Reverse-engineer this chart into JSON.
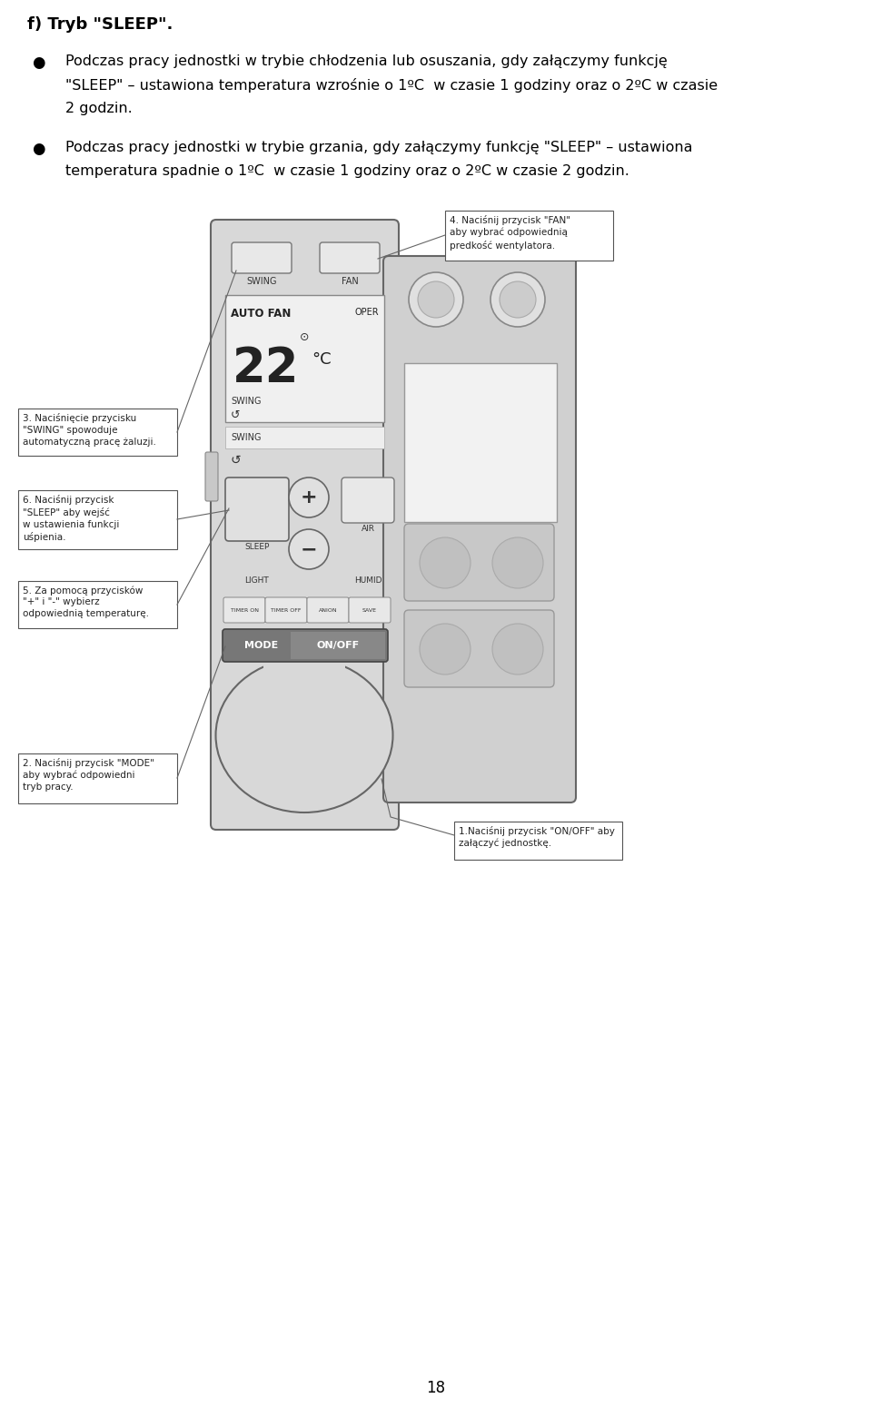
{
  "title": "f) Tryb \"SLEEP\".",
  "bullet1_line1": "Podczas pracy jednostki w trybie chłodzenia lub osuszania, gdy załączymy funkcję",
  "bullet1_line2": "\"SLEEP\" – ustawiona temperatura wzrośnie o 1ºC  w czasie 1 godziny oraz o 2ºC w czasie",
  "bullet1_line3": "2 godzin.",
  "bullet2_line1": "Podczas pracy jednostki w trybie grzania, gdy załączymy funkcję \"SLEEP\" – ustawiona",
  "bullet2_line2": "temperatura spadnie o 1ºC  w czasie 1 godziny oraz o 2ºC w czasie 2 godzin.",
  "page_number": "18",
  "bg_color": "#ffffff",
  "text_color": "#000000",
  "remote_body_color": "#d8d8d8",
  "remote_outline": "#666666",
  "panel_color": "#d0d0d0"
}
